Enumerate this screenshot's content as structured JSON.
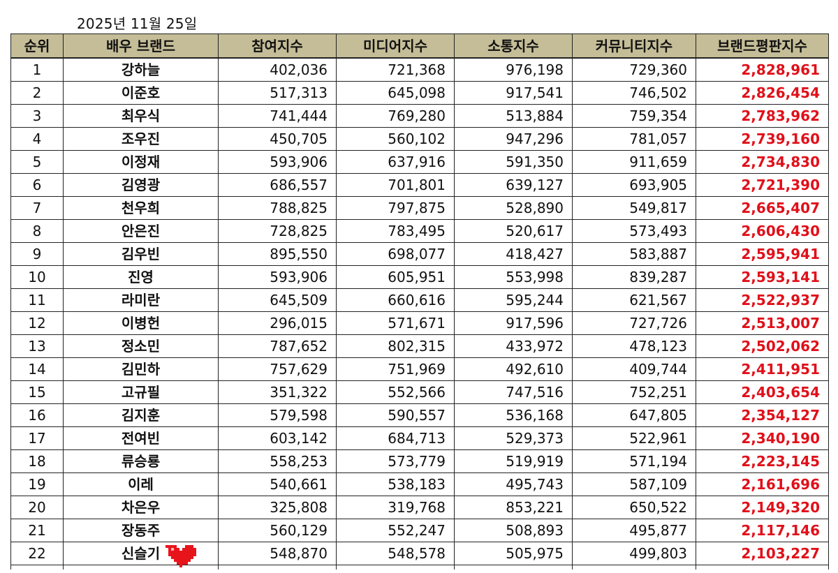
{
  "date": "2025년 11월 25일",
  "headers": [
    "순위",
    "배우 브랜드",
    "참여지수",
    "미디어지수",
    "소통지수",
    "커뮤니티지수",
    "브랜드평판지수"
  ],
  "rows": [
    {
      "rank": "1",
      "name": "강하늘",
      "participation": "402,036",
      "media": "721,368",
      "communication": "976,198",
      "community": "729,360",
      "brand": "2,828,961"
    },
    {
      "rank": "2",
      "name": "이준호",
      "participation": "517,313",
      "media": "645,098",
      "communication": "917,541",
      "community": "746,502",
      "brand": "2,826,454"
    },
    {
      "rank": "3",
      "name": "최우식",
      "participation": "741,444",
      "media": "769,280",
      "communication": "513,884",
      "community": "759,354",
      "brand": "2,783,962"
    },
    {
      "rank": "4",
      "name": "조우진",
      "participation": "450,705",
      "media": "560,102",
      "communication": "947,296",
      "community": "781,057",
      "brand": "2,739,160"
    },
    {
      "rank": "5",
      "name": "이정재",
      "participation": "593,906",
      "media": "637,916",
      "communication": "591,350",
      "community": "911,659",
      "brand": "2,734,830"
    },
    {
      "rank": "6",
      "name": "김영광",
      "participation": "686,557",
      "media": "701,801",
      "communication": "639,127",
      "community": "693,905",
      "brand": "2,721,390"
    },
    {
      "rank": "7",
      "name": "천우희",
      "participation": "788,825",
      "media": "797,875",
      "communication": "528,890",
      "community": "549,817",
      "brand": "2,665,407"
    },
    {
      "rank": "8",
      "name": "안은진",
      "participation": "728,825",
      "media": "783,495",
      "communication": "520,617",
      "community": "573,493",
      "brand": "2,606,430"
    },
    {
      "rank": "9",
      "name": "김우빈",
      "participation": "895,550",
      "media": "698,077",
      "communication": "418,427",
      "community": "583,887",
      "brand": "2,595,941"
    },
    {
      "rank": "10",
      "name": "진영",
      "participation": "593,906",
      "media": "605,951",
      "communication": "553,998",
      "community": "839,287",
      "brand": "2,593,141"
    },
    {
      "rank": "11",
      "name": "라미란",
      "participation": "645,509",
      "media": "660,616",
      "communication": "595,244",
      "community": "621,567",
      "brand": "2,522,937"
    },
    {
      "rank": "12",
      "name": "이병헌",
      "participation": "296,015",
      "media": "571,671",
      "communication": "917,596",
      "community": "727,726",
      "brand": "2,513,007"
    },
    {
      "rank": "13",
      "name": "정소민",
      "participation": "787,652",
      "media": "802,315",
      "communication": "433,972",
      "community": "478,123",
      "brand": "2,502,062"
    },
    {
      "rank": "14",
      "name": "김민하",
      "participation": "757,629",
      "media": "751,969",
      "communication": "492,610",
      "community": "409,744",
      "brand": "2,411,951"
    },
    {
      "rank": "15",
      "name": "고규필",
      "participation": "351,322",
      "media": "552,566",
      "communication": "747,516",
      "community": "752,251",
      "brand": "2,403,654"
    },
    {
      "rank": "16",
      "name": "김지훈",
      "participation": "579,598",
      "media": "590,557",
      "communication": "536,168",
      "community": "647,805",
      "brand": "2,354,127"
    },
    {
      "rank": "17",
      "name": "전여빈",
      "participation": "603,142",
      "media": "684,713",
      "communication": "529,373",
      "community": "522,961",
      "brand": "2,340,190"
    },
    {
      "rank": "18",
      "name": "류승룡",
      "participation": "558,253",
      "media": "573,779",
      "communication": "519,919",
      "community": "571,194",
      "brand": "2,223,145"
    },
    {
      "rank": "19",
      "name": "이레",
      "participation": "540,661",
      "media": "538,183",
      "communication": "495,743",
      "community": "587,109",
      "brand": "2,161,696"
    },
    {
      "rank": "20",
      "name": "차은우",
      "participation": "325,808",
      "media": "319,768",
      "communication": "853,221",
      "community": "650,522",
      "brand": "2,149,320"
    },
    {
      "rank": "21",
      "name": "장동주",
      "participation": "560,129",
      "media": "552,247",
      "communication": "508,893",
      "community": "495,877",
      "brand": "2,117,146"
    },
    {
      "rank": "22",
      "name": "신슬기",
      "participation": "548,870",
      "media": "548,578",
      "communication": "505,975",
      "community": "499,803",
      "brand": "2,103,227"
    }
  ],
  "colors": {
    "header_bg": "#c4bd97",
    "brand_value": "#e0101a",
    "heart": "#e8141c"
  },
  "icons": {
    "heart": "pixel-heart-icon"
  }
}
